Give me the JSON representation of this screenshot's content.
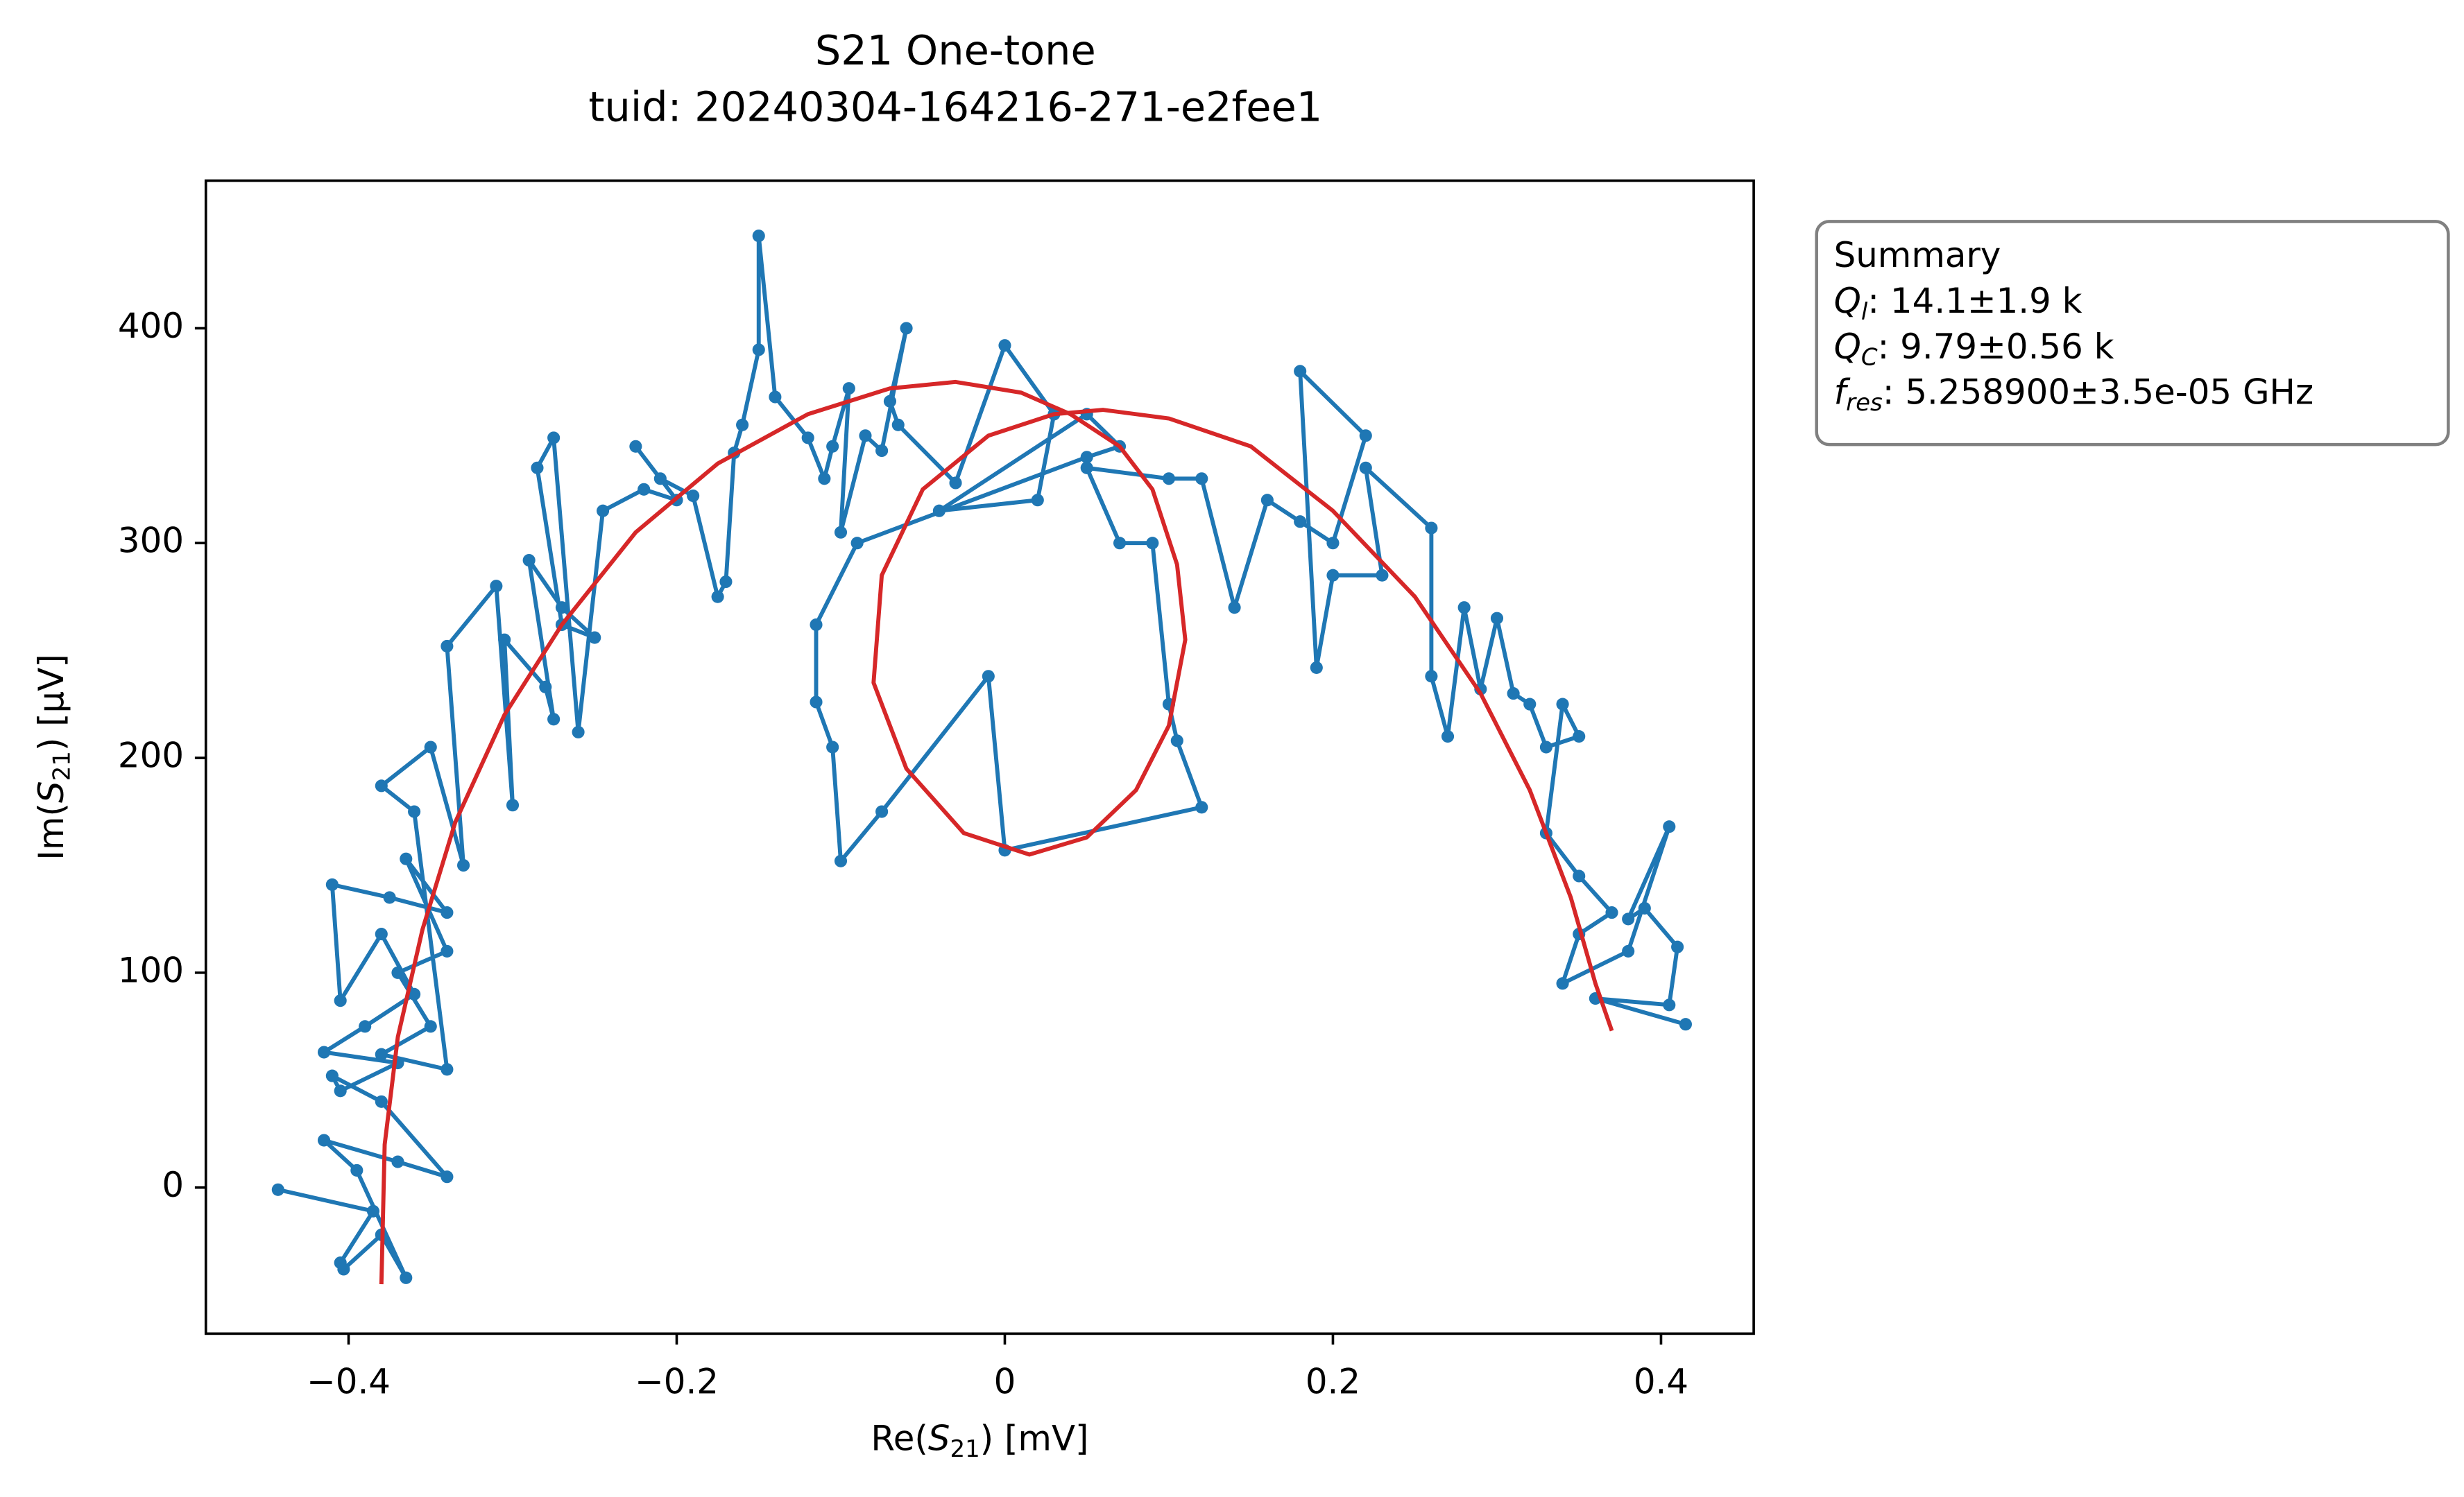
{
  "chart_data": {
    "type": "line",
    "title": "S21 One-tone",
    "subtitle": "tuid: 20240304-164216-271-e2fee1",
    "xlabel": {
      "prefix": "Re(",
      "symbol": "S",
      "subscript": "21",
      "suffix": ") [mV]"
    },
    "ylabel": {
      "prefix": "Im(",
      "symbol": "S",
      "subscript": "21",
      "suffix": ") [µV]"
    },
    "xlim": [
      -0.487,
      0.4565
    ],
    "ylim": [
      -68,
      468.7
    ],
    "xticks": [
      {
        "value": -0.4,
        "label": "−0.4"
      },
      {
        "value": -0.2,
        "label": "−0.2"
      },
      0,
      0.2,
      0.4
    ],
    "yticks": [
      0,
      100,
      200,
      300,
      400
    ],
    "summary": {
      "heading": "Summary",
      "lines": [
        {
          "symbol": "Q",
          "subscript": "l",
          "text": ": 14.1±1.9 k"
        },
        {
          "symbol": "Q",
          "subscript": "C",
          "text": ": 9.79±0.56 k"
        },
        {
          "symbol": "f",
          "subscript": "res",
          "text": ": 5.258900±3.5e-05 GHz"
        }
      ]
    },
    "series": [
      {
        "color": "#1f77b4",
        "markers": true,
        "x": [
          -0.443,
          -0.385,
          -0.405,
          -0.403,
          -0.38,
          -0.365,
          -0.395,
          -0.415,
          -0.37,
          -0.34,
          -0.38,
          -0.41,
          -0.405,
          -0.37,
          -0.415,
          -0.39,
          -0.36,
          -0.38,
          -0.405,
          -0.41,
          -0.375,
          -0.34,
          -0.365,
          -0.34,
          -0.37,
          -0.35,
          -0.38,
          -0.34,
          -0.36,
          -0.38,
          -0.35,
          -0.33,
          -0.34,
          -0.31,
          -0.3,
          -0.305,
          -0.28,
          -0.275,
          -0.29,
          -0.27,
          -0.25,
          -0.27,
          -0.285,
          -0.275,
          -0.26,
          -0.245,
          -0.22,
          -0.2,
          -0.225,
          -0.21,
          -0.19,
          -0.175,
          -0.17,
          -0.165,
          -0.16,
          -0.15,
          -0.15,
          -0.14,
          -0.12,
          -0.11,
          -0.105,
          -0.095,
          -0.1,
          -0.085,
          -0.075,
          -0.06,
          -0.07,
          -0.065,
          -0.03,
          0,
          0.03,
          0.02,
          -0.04,
          0.05,
          0.07,
          0.05,
          -0.09,
          -0.115,
          -0.115,
          -0.105,
          -0.1,
          -0.075,
          -0.01,
          0,
          0.12,
          0.105,
          0.1,
          0.09,
          0.07,
          0.05,
          0.1,
          0.12,
          0.14,
          0.16,
          0.18,
          0.2,
          0.22,
          0.18,
          0.19,
          0.2,
          0.23,
          0.22,
          0.26,
          0.26,
          0.27,
          0.28,
          0.29,
          0.3,
          0.31,
          0.32,
          0.33,
          0.35,
          0.34,
          0.33,
          0.35,
          0.37,
          0.35,
          0.34,
          0.38,
          0.405,
          0.38,
          0.39,
          0.41,
          0.405,
          0.36,
          0.415
        ],
        "y": [
          -1,
          -11,
          -35,
          -38,
          -22,
          -42,
          8,
          22,
          12,
          5,
          40,
          52,
          45,
          58,
          63,
          75,
          90,
          118,
          87,
          141,
          135,
          128,
          153,
          110,
          100,
          75,
          62,
          55,
          175,
          187,
          205,
          150,
          252,
          280,
          178,
          255,
          233,
          218,
          292,
          270,
          256,
          262,
          335,
          349,
          212,
          315,
          325,
          320,
          345,
          330,
          322,
          275,
          282,
          342,
          355,
          390,
          443,
          368,
          349,
          330,
          345,
          372,
          305,
          350,
          343,
          400,
          366,
          355,
          328,
          392,
          360,
          320,
          315,
          360,
          345,
          340,
          300,
          262,
          226,
          205,
          152,
          175,
          238,
          157,
          177,
          208,
          225,
          300,
          300,
          335,
          330,
          330,
          270,
          320,
          310,
          300,
          350,
          380,
          242,
          285,
          285,
          335,
          307,
          238,
          210,
          270,
          232,
          265,
          230,
          225,
          205,
          210,
          225,
          165,
          145,
          128,
          118,
          95,
          110,
          168,
          125,
          130,
          112,
          85,
          88,
          76
        ]
      },
      {
        "color": "#d62728",
        "markers": false,
        "x": [
          -0.38,
          -0.378,
          -0.37,
          -0.355,
          -0.335,
          -0.305,
          -0.27,
          -0.225,
          -0.175,
          -0.12,
          -0.07,
          -0.03,
          0.01,
          0.04,
          0.07,
          0.09,
          0.105,
          0.11,
          0.1,
          0.08,
          0.05,
          0.015,
          -0.025,
          -0.06,
          -0.08,
          -0.075,
          -0.05,
          -0.01,
          0.03,
          0.06,
          0.1,
          0.15,
          0.2,
          0.25,
          0.29,
          0.32,
          0.345,
          0.36,
          0.37
        ],
        "y": [
          -45,
          20,
          70,
          120,
          170,
          220,
          262,
          305,
          337,
          360,
          372,
          375,
          370,
          360,
          345,
          325,
          290,
          255,
          215,
          185,
          163,
          155,
          165,
          195,
          235,
          285,
          325,
          350,
          360,
          362,
          358,
          345,
          315,
          275,
          230,
          185,
          135,
          95,
          73
        ]
      }
    ]
  }
}
